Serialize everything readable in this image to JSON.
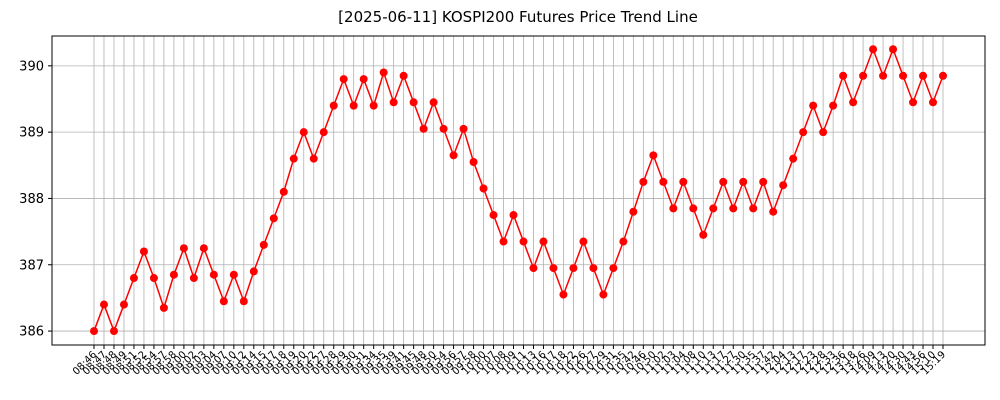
{
  "chart_data": {
    "type": "line",
    "title": "[2025-06-11] KOSPI200 Futures Price Trend Line",
    "categories": [
      "08:46",
      "08:47",
      "08:48",
      "08:49",
      "08:51",
      "08:52",
      "08:54",
      "08:57",
      "08:58",
      "09:00",
      "09:02",
      "09:03",
      "09:04",
      "09:07",
      "09:10",
      "09:12",
      "09:14",
      "09:15",
      "09:17",
      "09:18",
      "09:19",
      "09:20",
      "09:22",
      "09:27",
      "09:28",
      "09:29",
      "09:30",
      "09:31",
      "09:34",
      "09:35",
      "09:39",
      "09:41",
      "09:45",
      "09:48",
      "09:50",
      "09:54",
      "09:56",
      "09:57",
      "09:58",
      "10:00",
      "10:07",
      "10:08",
      "10:09",
      "10:11",
      "10:13",
      "10:16",
      "10:17",
      "10:18",
      "10:22",
      "10:26",
      "10:27",
      "10:29",
      "10:31",
      "10:35",
      "10:42",
      "10:46",
      "10:50",
      "11:02",
      "11:03",
      "11:04",
      "11:08",
      "11:10",
      "11:13",
      "11:17",
      "11:27",
      "11:30",
      "11:35",
      "11:37",
      "11:42",
      "12:04",
      "12:13",
      "12:17",
      "12:23",
      "12:28",
      "12:33",
      "12:36",
      "13:18",
      "13:26",
      "14:09",
      "14:13",
      "14:20",
      "14:30",
      "14:43",
      "14:56",
      "15:10",
      "15:19"
    ],
    "series": [
      {
        "color": "#ff0000",
        "values": [
          386.0,
          386.4,
          386.0,
          386.4,
          386.8,
          387.2,
          386.8,
          386.35,
          386.85,
          387.25,
          386.8,
          387.25,
          386.85,
          386.45,
          386.85,
          386.45,
          386.9,
          387.3,
          387.7,
          388.1,
          388.6,
          389.0,
          388.6,
          389.0,
          389.4,
          389.8,
          389.4,
          389.8,
          389.4,
          389.9,
          389.45,
          389.85,
          389.45,
          389.05,
          389.45,
          389.05,
          388.65,
          389.05,
          388.55,
          388.15,
          387.75,
          387.35,
          387.75,
          387.35,
          386.95,
          387.35,
          386.95,
          386.55,
          386.95,
          387.35,
          386.95,
          386.55,
          386.95,
          387.35,
          387.8,
          388.25,
          388.65,
          388.25,
          387.85,
          388.25,
          387.85,
          387.45,
          387.85,
          388.25,
          387.85,
          388.25,
          387.85,
          388.25,
          387.8,
          388.2,
          388.6,
          389.0,
          389.4,
          389.0,
          389.4,
          389.85,
          389.45,
          389.85,
          390.25,
          389.85,
          390.25,
          389.85,
          389.45,
          389.85,
          389.45,
          389.85
        ]
      }
    ],
    "ylim": [
      385.79,
      390.45
    ],
    "yticks": [
      386,
      387,
      388,
      389,
      390
    ],
    "grid": true
  }
}
